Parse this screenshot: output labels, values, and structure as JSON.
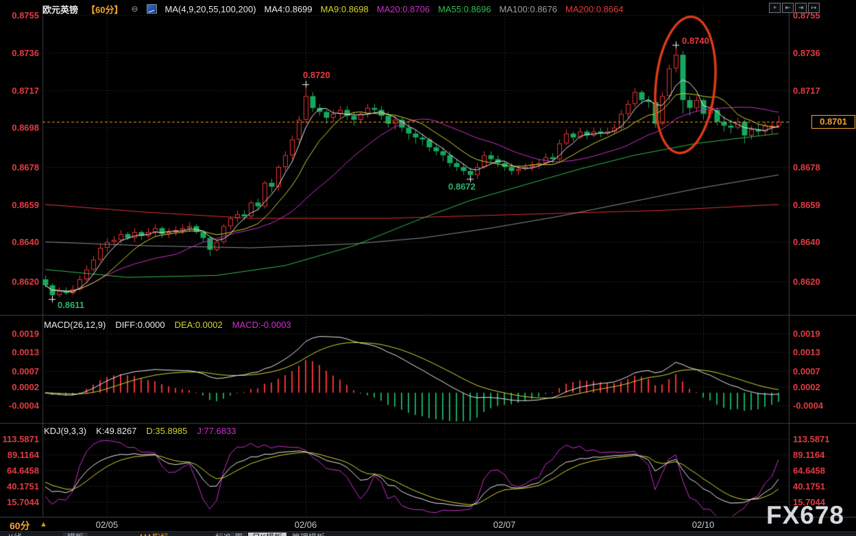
{
  "header": {
    "symbol": "欧元英镑",
    "period": "【60分】",
    "ma_label": "MA(4,9,20,55,100,200)",
    "ma_values": [
      {
        "label": "MA4:0.8699",
        "color": "#e9ebee"
      },
      {
        "label": "MA9:0.8698",
        "color": "#d6d62f"
      },
      {
        "label": "MA20:0.8706",
        "color": "#cc2fcc"
      },
      {
        "label": "MA55:0.8696",
        "color": "#2fbf4f"
      },
      {
        "label": "MA100:0.8676",
        "color": "#9aa0a6"
      },
      {
        "label": "MA200:0.8664",
        "color": "#e8393f"
      }
    ],
    "window_icons": [
      {
        "name": "crosshair-icon",
        "glyph": "+"
      },
      {
        "name": "axis-left-icon",
        "glyph": "⇤"
      },
      {
        "name": "axis-right-icon",
        "glyph": "⇥"
      },
      {
        "name": "exit-window-icon",
        "glyph": "↦"
      }
    ]
  },
  "indicators": {
    "macd": {
      "title": "MACD(26,12,9)",
      "diff": "DIFF:0.0000",
      "dea": "DEA:0.0002",
      "macd": "MACD:-0.0003"
    },
    "kdj": {
      "title": "KDJ(9,3,3)",
      "k": "K:49.8267",
      "d": "D:35.8985",
      "j": "J:77.6833"
    }
  },
  "bottom": {
    "period_label": "60分",
    "arrow": "▲"
  },
  "watermark": "FX678",
  "toolbar": {
    "items": [
      {
        "label": "K线",
        "style": "plain"
      },
      {
        "label": "模板",
        "style": "box"
      },
      {
        "label": "MA指标",
        "style": "orange"
      },
      {
        "label": "标准",
        "style": "plain"
      },
      {
        "label": "周",
        "style": "box"
      },
      {
        "label": "日K模板",
        "style": "bright"
      },
      {
        "label": "管理模板",
        "style": "plain"
      }
    ]
  },
  "colors": {
    "background": "#000000",
    "axis_text": "#e23b41",
    "up": "#ee3332",
    "down": "#16a85e",
    "grid": "#39404a",
    "panel_border": "#3a4047",
    "ma4": "#e8e8e8",
    "ma9": "#d6d62f",
    "ma20": "#cc2fcc",
    "ma55": "#2fbf4f",
    "ma100": "#8a9096",
    "ma200": "#e03234",
    "macd_diff": "#e8e8e8",
    "macd_dea": "#d6d62f",
    "kdj_k": "#e8e8e8",
    "kdj_d": "#d6d62f",
    "kdj_j": "#cc2fcc",
    "price_line": "#f7a330",
    "label_red": "#e8393f",
    "label_green": "#2db56a",
    "ellipse": "#dd3b16",
    "cross": "#ffffff"
  },
  "chart_data": {
    "type": "candlestick",
    "title": "欧元英镑 60分钟K线图",
    "price_axis": {
      "ticks": [
        "0.8755",
        "0.8736",
        "0.8717",
        "0.8698",
        "0.8678",
        "0.8659",
        "0.8640",
        "0.8620"
      ],
      "right_skip": "0.8698",
      "range": [
        0.8604,
        0.876
      ]
    },
    "x_axis": {
      "day_labels": [
        {
          "label": "02/05",
          "index": 9
        },
        {
          "label": "02/06",
          "index": 38
        },
        {
          "label": "02/07",
          "index": 67
        },
        {
          "label": "02/10",
          "index": 96
        }
      ]
    },
    "candles": {
      "scale": 10000,
      "first_open": 8621,
      "close": [
        8618,
        8613,
        8615,
        8614,
        8616,
        8621,
        8626,
        8631,
        8637,
        8640,
        8641,
        8644,
        8642,
        8645,
        8643,
        8645,
        8647,
        8644,
        8645,
        8646,
        8647,
        8648,
        8645,
        8642,
        8636,
        8640,
        8648,
        8652,
        8654,
        8653,
        8660,
        8658,
        8670,
        8668,
        8678,
        8684,
        8692,
        8702,
        8714,
        8708,
        8706,
        8703,
        8705,
        8707,
        8704,
        8702,
        8705,
        8708,
        8707,
        8704,
        8700,
        8702,
        8698,
        8695,
        8693,
        8692,
        8688,
        8686,
        8684,
        8680,
        8678,
        8676,
        8674,
        8678,
        8684,
        8682,
        8680,
        8678,
        8676,
        8677,
        8678,
        8679,
        8680,
        8683,
        8682,
        8690,
        8695,
        8693,
        8696,
        8694,
        8696,
        8695,
        8696,
        8698,
        8705,
        8710,
        8716,
        8712,
        8711,
        8700,
        8714,
        8728,
        8735,
        8712,
        8708,
        8712,
        8705,
        8707,
        8701,
        8699,
        8698,
        8701,
        8694,
        8697,
        8696,
        8699,
        8699,
        8701
      ],
      "high": [
        8623,
        8619,
        8617,
        8617,
        8618,
        8623,
        8628,
        8633,
        8639,
        8642,
        8643,
        8646,
        8645,
        8647,
        8646,
        8647,
        8649,
        8648,
        8647,
        8648,
        8649,
        8650,
        8649,
        8646,
        8643,
        8641,
        8649,
        8653,
        8656,
        8656,
        8661,
        8662,
        8671,
        8672,
        8679,
        8686,
        8694,
        8704,
        8720,
        8716,
        8710,
        8707,
        8707,
        8709,
        8709,
        8706,
        8706,
        8710,
        8710,
        8709,
        8706,
        8704,
        8703,
        8700,
        8697,
        8695,
        8693,
        8690,
        8688,
        8686,
        8682,
        8680,
        8678,
        8680,
        8686,
        8686,
        8684,
        8681,
        8680,
        8679,
        8680,
        8681,
        8682,
        8685,
        8685,
        8692,
        8697,
        8696,
        8698,
        8697,
        8698,
        8698,
        8698,
        8700,
        8707,
        8712,
        8718,
        8717,
        8714,
        8712,
        8716,
        8730,
        8740,
        8737,
        8714,
        8714,
        8713,
        8709,
        8708,
        8704,
        8702,
        8703,
        8702,
        8699,
        8700,
        8701,
        8701,
        8704
      ],
      "low": [
        8617,
        8611,
        8612,
        8613,
        8613,
        8615,
        8620,
        8625,
        8630,
        8635,
        8638,
        8639,
        8641,
        8640,
        8641,
        8642,
        8643,
        8642,
        8642,
        8643,
        8644,
        8645,
        8644,
        8640,
        8633,
        8635,
        8639,
        8646,
        8650,
        8651,
        8652,
        8656,
        8657,
        8665,
        8666,
        8676,
        8682,
        8690,
        8700,
        8706,
        8704,
        8700,
        8701,
        8703,
        8702,
        8699,
        8700,
        8703,
        8705,
        8702,
        8698,
        8697,
        8696,
        8692,
        8690,
        8689,
        8686,
        8684,
        8681,
        8678,
        8676,
        8674,
        8672,
        8672,
        8677,
        8680,
        8678,
        8676,
        8674,
        8674,
        8676,
        8676,
        8677,
        8679,
        8680,
        8681,
        8689,
        8691,
        8692,
        8692,
        8693,
        8693,
        8694,
        8695,
        8697,
        8703,
        8708,
        8710,
        8708,
        8698,
        8699,
        8712,
        8726,
        8705,
        8704,
        8706,
        8702,
        8703,
        8699,
        8696,
        8695,
        8697,
        8690,
        8692,
        8694,
        8694,
        8695,
        8698
      ]
    },
    "ma_overlays": {
      "ma4_window": 4,
      "ma9_window": 9,
      "ma20_window": 20,
      "ma55_points": [
        [
          0,
          8626
        ],
        [
          12,
          8622
        ],
        [
          25,
          8623
        ],
        [
          35,
          8628
        ],
        [
          45,
          8638
        ],
        [
          55,
          8652
        ],
        [
          62,
          8661
        ],
        [
          70,
          8669
        ],
        [
          78,
          8677
        ],
        [
          86,
          8684
        ],
        [
          95,
          8690
        ],
        [
          107,
          8695
        ]
      ],
      "ma100_points": [
        [
          0,
          8640
        ],
        [
          15,
          8638
        ],
        [
          30,
          8637
        ],
        [
          45,
          8639
        ],
        [
          55,
          8642
        ],
        [
          65,
          8647
        ],
        [
          75,
          8653
        ],
        [
          85,
          8660
        ],
        [
          95,
          8667
        ],
        [
          107,
          8674
        ]
      ],
      "ma200_points": [
        [
          0,
          8659
        ],
        [
          15,
          8655
        ],
        [
          30,
          8652
        ],
        [
          50,
          8652
        ],
        [
          70,
          8654
        ],
        [
          90,
          8656
        ],
        [
          107,
          8659
        ]
      ]
    },
    "macd": {
      "params": [
        26,
        12,
        9
      ],
      "axis_ticks": [
        "0.0019",
        "0.0013",
        "0.0007",
        "0.0002",
        "-0.0004"
      ]
    },
    "kdj": {
      "params": [
        9,
        3,
        3
      ],
      "axis_ticks": [
        "113.5871",
        "89.1164",
        "64.6458",
        "40.1751",
        "15.7044"
      ]
    },
    "annotations": {
      "high1": {
        "label": "0.8720",
        "index": 38,
        "price": 0.872
      },
      "high2": {
        "label": "0.8740",
        "index": 92,
        "price": 0.874
      },
      "low1": {
        "label": "0.8611",
        "index": 1,
        "price": 0.8611
      },
      "low2": {
        "label": "0.8672",
        "index": 62,
        "price": 0.8672
      },
      "current_price": "0.8701",
      "ellipse": {
        "center_index": 92,
        "note": "红色椭圆圈注高点区域"
      }
    }
  }
}
